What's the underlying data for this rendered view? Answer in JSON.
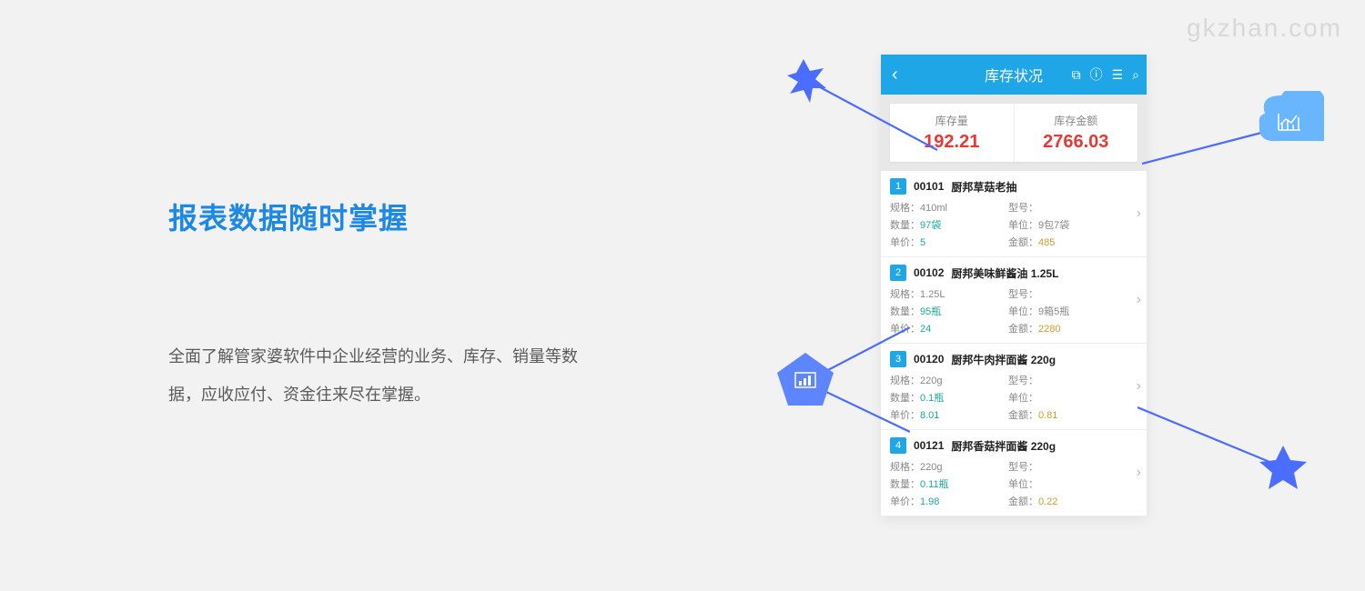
{
  "watermark": "gkzhan.com",
  "headline": "报表数据随时掌握",
  "body": "全面了解管家婆软件中企业经营的业务、库存、销量等数据，应收应付、资金往来尽在掌握。",
  "phone": {
    "title": "库存状况",
    "summary": [
      {
        "label": "库存量",
        "value": "192.21"
      },
      {
        "label": "库存金额",
        "value": "2766.03"
      }
    ],
    "items": [
      {
        "idx": "1",
        "code": "00101",
        "name": "厨邦草菇老抽",
        "spec": "410ml",
        "model": "",
        "qty": "97袋",
        "unit": "9包7袋",
        "price": "5",
        "amount": "485"
      },
      {
        "idx": "2",
        "code": "00102",
        "name": "厨邦美味鲜酱油 1.25L",
        "spec": "1.25L",
        "model": "",
        "qty": "95瓶",
        "unit": "9箱5瓶",
        "price": "24",
        "amount": "2280"
      },
      {
        "idx": "3",
        "code": "00120",
        "name": "厨邦牛肉拌面酱 220g",
        "spec": "220g",
        "model": "",
        "qty": "0.1瓶",
        "unit": "",
        "price": "8.01",
        "amount": "0.81"
      },
      {
        "idx": "4",
        "code": "00121",
        "name": "厨邦香菇拌面酱 220g",
        "spec": "220g",
        "model": "",
        "qty": "0.11瓶",
        "unit": "",
        "price": "1.98",
        "amount": "0.22"
      }
    ],
    "labels": {
      "spec": "规格：",
      "model": "型号：",
      "qty": "数量：",
      "unit": "单位：",
      "price": "单价：",
      "amount": "金额："
    }
  },
  "colors": {
    "accent": "#1fa6e6",
    "deco": "#4b6dff",
    "value": "#e53935",
    "teal": "#1aa89a",
    "amber": "#d39a2a"
  }
}
